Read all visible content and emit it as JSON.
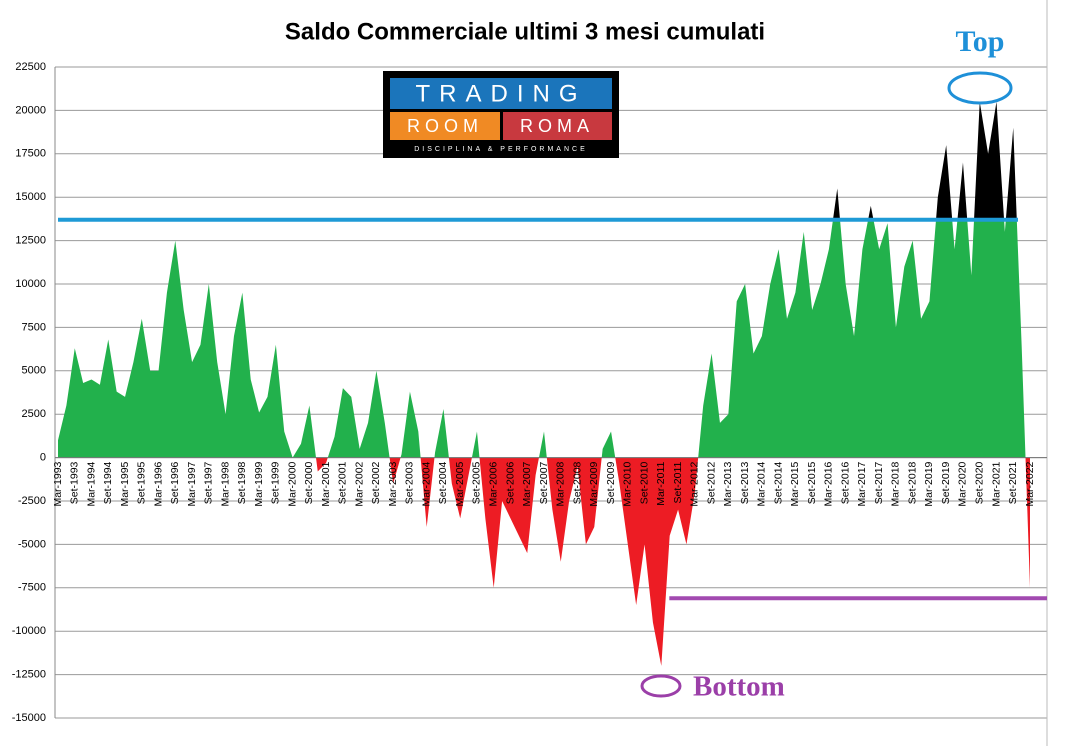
{
  "chart_data": {
    "type": "area",
    "title": "Saldo Commerciale ultimi 3 mesi cumulati",
    "categories": [
      "Mar-1993",
      null,
      "Set-1993",
      null,
      "Mar-1994",
      null,
      "Set-1994",
      null,
      "Mar-1995",
      null,
      "Set-1995",
      null,
      "Mar-1996",
      null,
      "Set-1996",
      null,
      "Mar-1997",
      null,
      "Set-1997",
      null,
      "Mar-1998",
      null,
      "Set-1998",
      null,
      "Mar-1999",
      null,
      "Set-1999",
      null,
      "Mar-2000",
      null,
      "Set-2000",
      null,
      "Mar-2001",
      null,
      "Set-2001",
      null,
      "Mar-2002",
      null,
      "Set-2002",
      null,
      "Mar-2003",
      null,
      "Set-2003",
      null,
      "Mar-2004",
      null,
      "Set-2004",
      null,
      "Mar-2005",
      null,
      "Set-2005",
      null,
      "Mar-2006",
      null,
      "Set-2006",
      null,
      "Mar-2007",
      null,
      "Set-2007",
      null,
      "Mar-2008",
      null,
      "Set-2008",
      null,
      "Mar-2009",
      null,
      "Set-2009",
      null,
      "Mar-2010",
      null,
      "Set-2010",
      null,
      "Mar-2011",
      null,
      "Set-2011",
      null,
      "Mar-2012",
      null,
      "Set-2012",
      null,
      "Mar-2013",
      null,
      "Set-2013",
      null,
      "Mar-2014",
      null,
      "Set-2014",
      null,
      "Mar-2015",
      null,
      "Set-2015",
      null,
      "Mar-2016",
      null,
      "Set-2016",
      null,
      "Mar-2017",
      null,
      "Set-2017",
      null,
      "Mar-2018",
      null,
      "Set-2018",
      null,
      "Mar-2019",
      null,
      "Set-2019",
      null,
      "Mar-2020",
      null,
      "Set-2020",
      null,
      "Mar-2021",
      null,
      "Set-2021",
      null,
      "Mar-2022"
    ],
    "values": [
      1000,
      3000,
      6300,
      4300,
      4500,
      4200,
      6800,
      3800,
      3500,
      5500,
      8000,
      5000,
      5000,
      9500,
      12500,
      8500,
      5500,
      6500,
      10000,
      5500,
      2500,
      7000,
      9500,
      4500,
      2600,
      3500,
      6500,
      1500,
      0,
      800,
      3000,
      -800,
      -300,
      1200,
      4000,
      3500,
      500,
      2000,
      5000,
      2000,
      -1500,
      200,
      3800,
      1500,
      -4000,
      300,
      2800,
      -1500,
      -3500,
      -1000,
      1500,
      -3500,
      -7500,
      -2500,
      -3500,
      -4500,
      -5500,
      -1000,
      1500,
      -3000,
      -6000,
      -2500,
      -500,
      -5000,
      -4000,
      500,
      1500,
      -1500,
      -5000,
      -8500,
      -5000,
      -9500,
      -12000,
      -4500,
      -3000,
      -5000,
      -2000,
      3000,
      6000,
      2000,
      2500,
      9000,
      10000,
      6000,
      7000,
      10000,
      12000,
      8000,
      9500,
      13000,
      8500,
      10000,
      12000,
      15500,
      10000,
      7000,
      12000,
      14500,
      12000,
      13500,
      7500,
      11000,
      12500,
      8000,
      9000,
      15000,
      18000,
      12000,
      17000,
      10500,
      20500,
      17500,
      20500,
      13000,
      19000,
      6500,
      -7500
    ],
    "colors": {
      "above_top": "#000000",
      "positive": "#22b14c",
      "negative": "#ed1c24"
    },
    "ylim": [
      -15000,
      22500
    ],
    "yticks": [
      -15000,
      -12500,
      -10000,
      -7500,
      -5000,
      -2500,
      0,
      2500,
      5000,
      7500,
      10000,
      12500,
      15000,
      17500,
      20000,
      22500
    ],
    "grid": true,
    "reference_lines": [
      {
        "value": 13700,
        "color": "#1e9ad6"
      },
      {
        "value": -8100,
        "color": "#a24ab0"
      }
    ],
    "annotations": [
      {
        "text": "Top",
        "color": "#1e90d8"
      },
      {
        "text": "Bottom",
        "color": "#9b3fa8"
      }
    ]
  },
  "logo": {
    "line1": "TRADING",
    "word2": "ROOM",
    "word3": "ROMA",
    "tagline": "DISCIPLINA & PERFORMANCE"
  }
}
